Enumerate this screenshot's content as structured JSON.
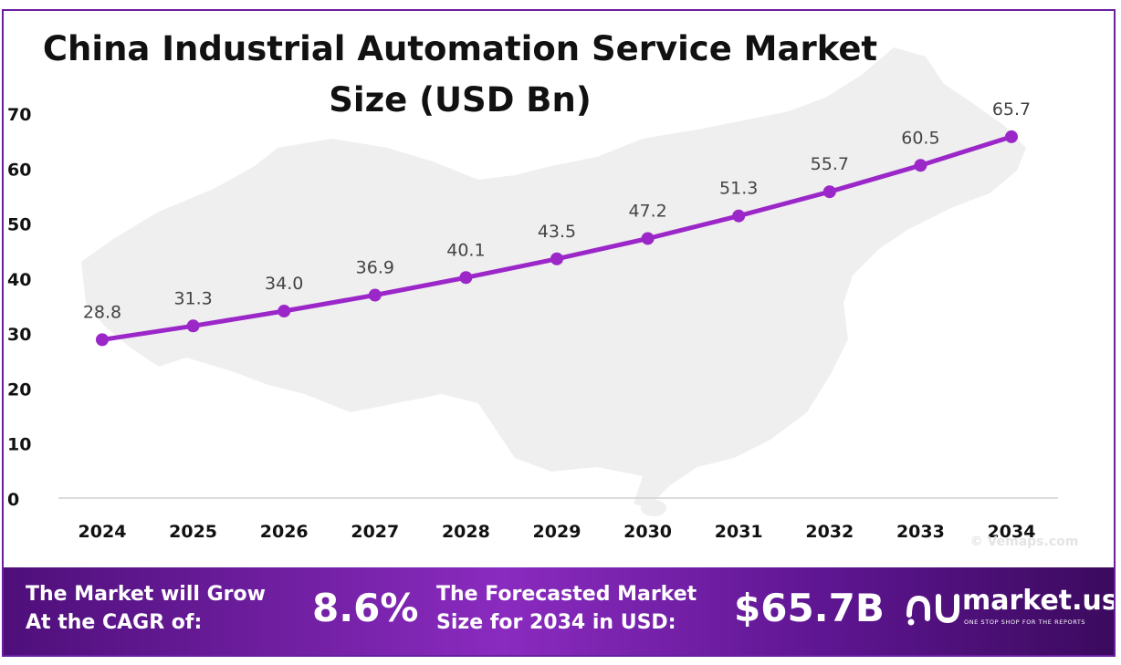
{
  "chart_data": {
    "type": "line",
    "title": "China Industrial Automation Service Market Size (USD Bn)",
    "categories": [
      "2024",
      "2025",
      "2026",
      "2027",
      "2028",
      "2029",
      "2030",
      "2031",
      "2032",
      "2033",
      "2034"
    ],
    "series": [
      {
        "values": [
          28.8,
          31.3,
          34.0,
          36.9,
          40.1,
          43.5,
          47.2,
          51.3,
          55.7,
          60.5,
          65.7
        ]
      }
    ],
    "data_labels": [
      "28.8",
      "31.3",
      "34.0",
      "36.9",
      "40.1",
      "43.5",
      "47.2",
      "51.3",
      "55.7",
      "60.5",
      "65.7"
    ],
    "yticks": [
      "0",
      "10",
      "20",
      "30",
      "40",
      "50",
      "60",
      "70"
    ],
    "ylim": [
      0,
      70
    ],
    "xlabel": "",
    "ylabel": "",
    "grid": false,
    "legend": "none",
    "line_color": "#9b27c9"
  },
  "watermark": "© Vemaps.com",
  "banner": {
    "cagr_label_line1": "The Market will Grow",
    "cagr_label_line2": "At the CAGR of:",
    "cagr_value": "8.6%",
    "forecast_label_line1": "The Forecasted Market",
    "forecast_label_line2": "Size for 2034 in USD:",
    "forecast_value": "$65.7B",
    "brand": "market.us",
    "tagline": "ONE STOP SHOP FOR THE REPORTS",
    "logo_icon": "market-us-logo-icon"
  }
}
